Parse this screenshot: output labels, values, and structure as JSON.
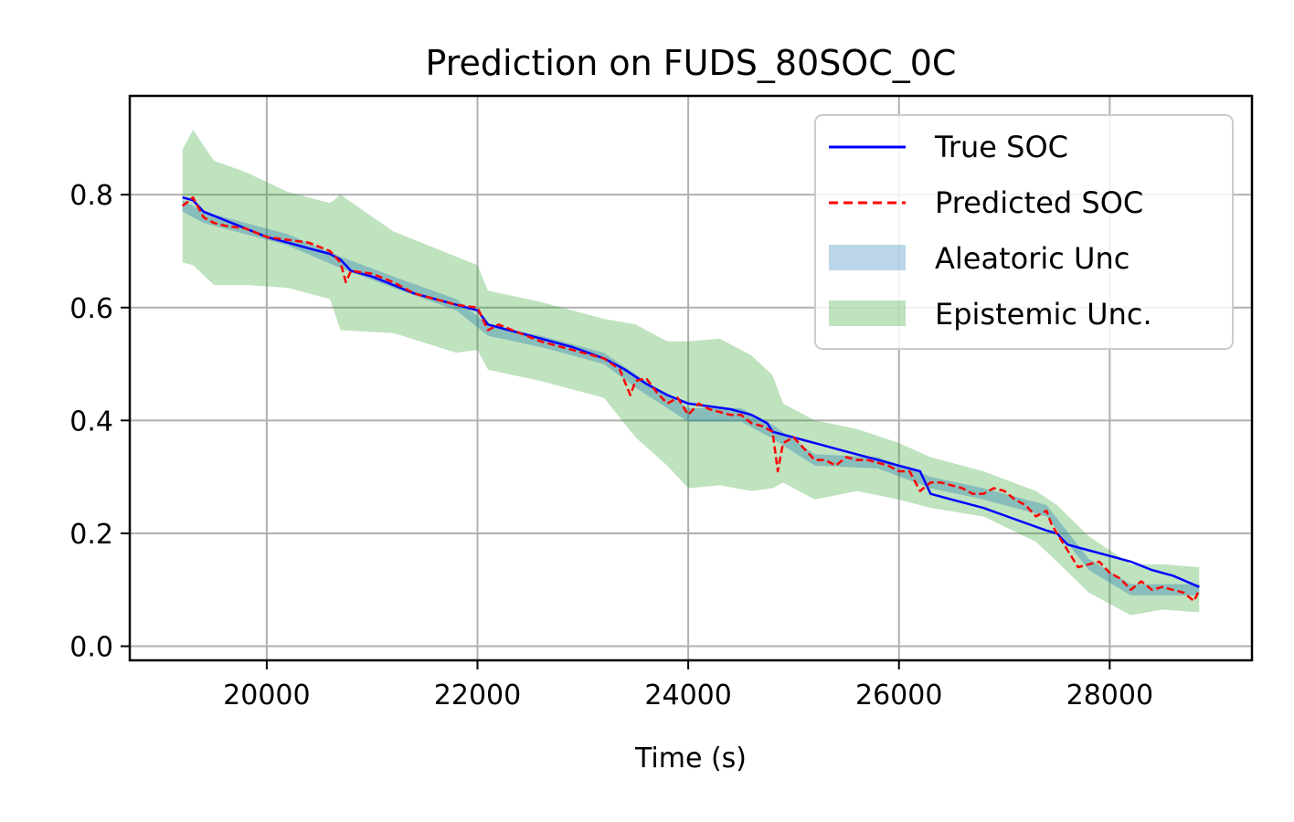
{
  "chart_data": {
    "type": "line",
    "title": "Prediction on FUDS_80SOC_0C",
    "xlabel": "Time (s)",
    "ylabel": "",
    "xlim": [
      18700,
      29350
    ],
    "ylim": [
      -0.025,
      0.975
    ],
    "grid": true,
    "legend_position": "top-right",
    "x_ticks": [
      20000,
      22000,
      24000,
      26000,
      28000
    ],
    "x_tick_labels": [
      "20000",
      "22000",
      "24000",
      "26000",
      "28000"
    ],
    "y_ticks": [
      0.0,
      0.2,
      0.4,
      0.6,
      0.8
    ],
    "y_tick_labels": [
      "0.0",
      "0.2",
      "0.4",
      "0.6",
      "0.8"
    ],
    "colors": {
      "true_soc": "#0000ff",
      "predicted_soc": "#ff0000",
      "aleatoric": "#1f77b4",
      "epistemic": "#2ca02c",
      "grid": "#b0b0b0"
    },
    "series": [
      {
        "name": "True SOC",
        "style": "solid",
        "x": [
          19200,
          19300,
          19400,
          19600,
          19800,
          20000,
          20200,
          20400,
          20600,
          20700,
          20800,
          21000,
          21200,
          21400,
          21600,
          21800,
          22000,
          22100,
          22300,
          22600,
          22900,
          23200,
          23400,
          23600,
          23800,
          24000,
          24200,
          24400,
          24600,
          24750,
          24800,
          25000,
          25200,
          25400,
          25600,
          25800,
          26000,
          26200,
          26300,
          26500,
          26800,
          27100,
          27400,
          27500,
          27600,
          27800,
          28000,
          28200,
          28400,
          28600,
          28850
        ],
        "y": [
          0.795,
          0.79,
          0.77,
          0.755,
          0.74,
          0.725,
          0.715,
          0.705,
          0.695,
          0.685,
          0.665,
          0.655,
          0.64,
          0.625,
          0.615,
          0.605,
          0.595,
          0.57,
          0.56,
          0.545,
          0.53,
          0.51,
          0.49,
          0.465,
          0.445,
          0.43,
          0.425,
          0.42,
          0.41,
          0.395,
          0.38,
          0.37,
          0.36,
          0.35,
          0.34,
          0.33,
          0.32,
          0.31,
          0.27,
          0.26,
          0.245,
          0.225,
          0.205,
          0.2,
          0.18,
          0.17,
          0.16,
          0.15,
          0.135,
          0.125,
          0.105
        ]
      },
      {
        "name": "Predicted SOC",
        "style": "dashed",
        "x": [
          19200,
          19300,
          19400,
          19500,
          19600,
          19800,
          20000,
          20200,
          20400,
          20600,
          20700,
          20750,
          20800,
          21000,
          21200,
          21400,
          21600,
          21800,
          22000,
          22100,
          22200,
          22400,
          22600,
          22800,
          23000,
          23200,
          23350,
          23450,
          23500,
          23600,
          23700,
          23800,
          23900,
          24000,
          24100,
          24200,
          24300,
          24400,
          24500,
          24600,
          24700,
          24800,
          24850,
          24900,
          25000,
          25100,
          25200,
          25300,
          25400,
          25500,
          25600,
          25700,
          25800,
          25900,
          26000,
          26100,
          26200,
          26300,
          26400,
          26500,
          26600,
          26700,
          26800,
          26900,
          27000,
          27100,
          27200,
          27300,
          27400,
          27450,
          27500,
          27600,
          27700,
          27800,
          27900,
          28000,
          28100,
          28200,
          28300,
          28400,
          28500,
          28600,
          28700,
          28800,
          28850
        ],
        "y": [
          0.78,
          0.795,
          0.76,
          0.75,
          0.745,
          0.74,
          0.725,
          0.72,
          0.715,
          0.7,
          0.68,
          0.645,
          0.665,
          0.66,
          0.645,
          0.625,
          0.615,
          0.605,
          0.6,
          0.56,
          0.57,
          0.555,
          0.54,
          0.53,
          0.52,
          0.51,
          0.49,
          0.445,
          0.47,
          0.475,
          0.45,
          0.43,
          0.44,
          0.41,
          0.43,
          0.42,
          0.415,
          0.41,
          0.41,
          0.395,
          0.39,
          0.38,
          0.31,
          0.36,
          0.37,
          0.35,
          0.33,
          0.33,
          0.32,
          0.335,
          0.33,
          0.33,
          0.325,
          0.32,
          0.31,
          0.31,
          0.275,
          0.29,
          0.29,
          0.285,
          0.28,
          0.27,
          0.27,
          0.28,
          0.275,
          0.26,
          0.25,
          0.23,
          0.24,
          0.215,
          0.2,
          0.17,
          0.14,
          0.145,
          0.15,
          0.13,
          0.12,
          0.1,
          0.115,
          0.1,
          0.105,
          0.1,
          0.095,
          0.08,
          0.1
        ]
      },
      {
        "name": "Aleatoric Unc",
        "type": "band",
        "x": [
          19200,
          19400,
          19800,
          20200,
          20700,
          21200,
          21800,
          22100,
          22600,
          23200,
          23500,
          24000,
          24500,
          24800,
          25200,
          25800,
          26300,
          26800,
          27400,
          27800,
          28200,
          28850
        ],
        "half_width": [
          0.01,
          0.01,
          0.01,
          0.01,
          0.01,
          0.01,
          0.01,
          0.01,
          0.01,
          0.01,
          0.012,
          0.012,
          0.012,
          0.012,
          0.01,
          0.01,
          0.01,
          0.01,
          0.01,
          0.01,
          0.01,
          0.01
        ]
      },
      {
        "name": "Epistemic Unc.",
        "type": "band",
        "x": [
          19200,
          19300,
          19500,
          19800,
          20200,
          20600,
          20700,
          21200,
          21800,
          22000,
          22100,
          22600,
          23200,
          23500,
          23800,
          24000,
          24300,
          24600,
          24800,
          24900,
          25200,
          25600,
          26000,
          26300,
          26800,
          27300,
          27500,
          27800,
          28200,
          28500,
          28850
        ],
        "half_width": [
          0.1,
          0.12,
          0.11,
          0.1,
          0.085,
          0.085,
          0.12,
          0.09,
          0.085,
          0.075,
          0.07,
          0.07,
          0.07,
          0.1,
          0.11,
          0.13,
          0.13,
          0.12,
          0.1,
          0.07,
          0.07,
          0.055,
          0.05,
          0.045,
          0.04,
          0.045,
          0.05,
          0.05,
          0.045,
          0.04,
          0.04
        ]
      }
    ]
  }
}
